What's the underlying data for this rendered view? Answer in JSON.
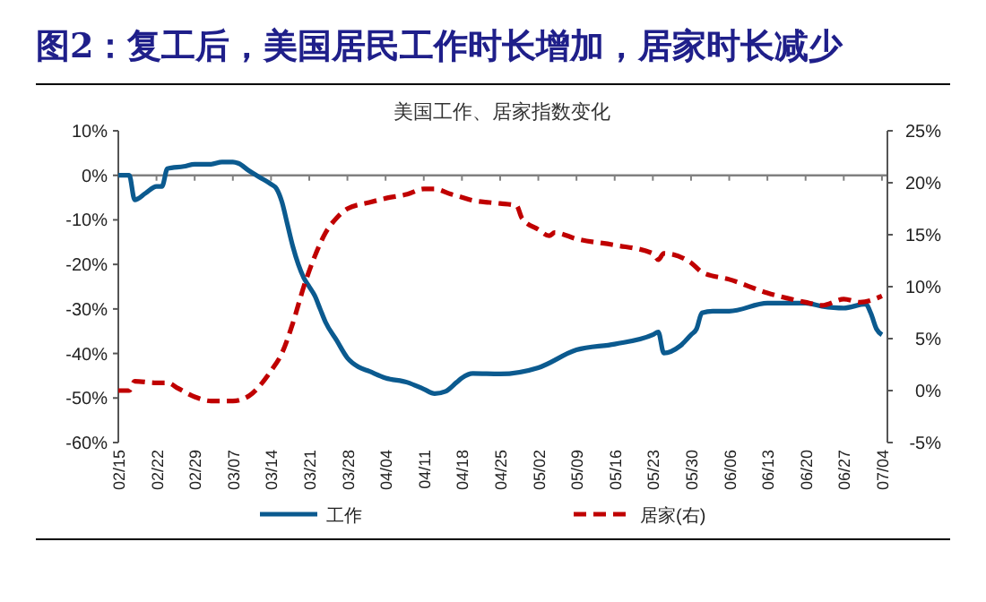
{
  "chart_data": {
    "type": "line",
    "title": "图2：复工后，美国居民工作时长增加，居家时长减少",
    "subtitle": "美国工作、居家指数变化",
    "xlim": [
      "--02-15",
      "--07-05"
    ],
    "xticks": [
      {
        "value": "--02-15",
        "label": "02/15"
      },
      {
        "value": "--02-22",
        "label": "02/22"
      },
      {
        "value": "--02-29",
        "label": "02/29"
      },
      {
        "value": "--03-07",
        "label": "03/07"
      },
      {
        "value": "--03-14",
        "label": "03/14"
      },
      {
        "value": "--03-21",
        "label": "03/21"
      },
      {
        "value": "--03-28",
        "label": "03/28"
      },
      {
        "value": "--04-04",
        "label": "04/04"
      },
      {
        "value": "--04-11",
        "label": "04/11"
      },
      {
        "value": "--04-18",
        "label": "04/18"
      },
      {
        "value": "--04-25",
        "label": "04/25"
      },
      {
        "value": "--05-02",
        "label": "05/02"
      },
      {
        "value": "--05-09",
        "label": "05/09"
      },
      {
        "value": "--05-16",
        "label": "05/16"
      },
      {
        "value": "--05-23",
        "label": "05/23"
      },
      {
        "value": "--05-30",
        "label": "05/30"
      },
      {
        "value": "--06-06",
        "label": "06/06"
      },
      {
        "value": "--06-13",
        "label": "06/13"
      },
      {
        "value": "--06-20",
        "label": "06/20"
      },
      {
        "value": "--06-27",
        "label": "06/27"
      },
      {
        "value": "--07-04",
        "label": "07/04"
      }
    ],
    "ylim": [
      -60,
      10
    ],
    "yticks": [
      {
        "value": -60,
        "label": "-60%"
      },
      {
        "value": -50,
        "label": "-50%"
      },
      {
        "value": -40,
        "label": "-40%"
      },
      {
        "value": -30,
        "label": "-30%"
      },
      {
        "value": -20,
        "label": "-20%"
      },
      {
        "value": -10,
        "label": "-10%"
      },
      {
        "value": 0,
        "label": "0%"
      },
      {
        "value": 10,
        "label": "10%"
      }
    ],
    "y2lim": [
      -5,
      25
    ],
    "y2ticks": [
      {
        "value": -5,
        "label": "-5%"
      },
      {
        "value": 0,
        "label": "0%"
      },
      {
        "value": 5,
        "label": "5%"
      },
      {
        "value": 10,
        "label": "10%"
      },
      {
        "value": 15,
        "label": "15%"
      },
      {
        "value": 20,
        "label": "20%"
      },
      {
        "value": 25,
        "label": "25%"
      }
    ],
    "grid": false,
    "legend": "bottom",
    "marker": "none",
    "ref_lines": [
      {
        "axis": "y",
        "value": 0,
        "color": "#808080"
      }
    ],
    "series": [
      {
        "name": "工作",
        "color": "#0b5a8f",
        "line_style": "solid",
        "x": [
          "--02-15",
          "--02-17",
          "--02-18",
          "--02-20",
          "--02-22",
          "--02-23",
          "--02-24",
          "--02-27",
          "--02-29",
          "--03-03",
          "--03-05",
          "--03-07",
          "--03-08",
          "--03-10",
          "--03-12",
          "--03-14",
          "--03-15",
          "--03-16",
          "--03-17",
          "--03-18",
          "--03-19",
          "--03-20",
          "--03-21",
          "--03-22",
          "--03-23",
          "--03-24",
          "--03-26",
          "--03-28",
          "--03-30",
          "--04-01",
          "--04-04",
          "--04-08",
          "--04-11",
          "--04-13",
          "--04-15",
          "--04-17",
          "--04-18",
          "--04-20",
          "--04-25",
          "--05-02",
          "--05-09",
          "--05-16",
          "--05-23",
          "--05-24",
          "--05-25",
          "--05-28",
          "--05-30",
          "--05-31",
          "--06-01",
          "--06-03",
          "--06-06",
          "--06-13",
          "--06-20",
          "--06-23",
          "--06-27",
          "--07-01",
          "--07-02",
          "--07-03",
          "--07-04"
        ],
        "values": [
          0,
          0,
          -5.5,
          -4,
          -2.5,
          -2.5,
          1.5,
          2,
          2.5,
          2.5,
          3,
          3,
          2.7,
          1,
          -0.5,
          -2,
          -3,
          -6,
          -11,
          -16,
          -20,
          -23,
          -25,
          -27,
          -30,
          -33,
          -37,
          -41,
          -43,
          -44,
          -45.5,
          -46.5,
          -48,
          -49,
          -48.5,
          -46.5,
          -45.5,
          -44.5,
          -44.6,
          -43.2,
          -39.2,
          -37.9,
          -35.8,
          -35.2,
          -39.9,
          -38.3,
          -35.8,
          -34.5,
          -30.9,
          -30.5,
          -30.5,
          -28.7,
          -28.7,
          -29.4,
          -29.8,
          -28.9,
          -31.1,
          -34.5,
          -35.8
        ]
      },
      {
        "name": "居家(右)",
        "color": "#c00000",
        "line_style": "dashed",
        "axis": "y2",
        "x": [
          "--02-15",
          "--02-17",
          "--02-18",
          "--02-22",
          "--02-24",
          "--02-26",
          "--02-29",
          "--03-03",
          "--03-07",
          "--03-10",
          "--03-12",
          "--03-14",
          "--03-16",
          "--03-18",
          "--03-20",
          "--03-22",
          "--03-24",
          "--03-26",
          "--03-28",
          "--04-01",
          "--04-04",
          "--04-08",
          "--04-11",
          "--04-13",
          "--04-16",
          "--04-18",
          "--04-20",
          "--04-23",
          "--04-25",
          "--04-28",
          "--04-29",
          "--05-02",
          "--05-04",
          "--05-05",
          "--05-09",
          "--05-16",
          "--05-23",
          "--05-24",
          "--05-25",
          "--05-30",
          "--06-01",
          "--06-06",
          "--06-13",
          "--06-20",
          "--06-23",
          "--06-27",
          "--06-30",
          "--07-04"
        ],
        "values": [
          0,
          0,
          0.9,
          0.75,
          0.75,
          0.2,
          -0.6,
          -1,
          -1,
          -0.5,
          0.5,
          1.9,
          3.6,
          6.5,
          10,
          12.9,
          15.2,
          16.6,
          17.5,
          18.1,
          18.5,
          18.9,
          19.4,
          19.4,
          18.9,
          18.6,
          18.3,
          18.1,
          18,
          17.8,
          16.6,
          15.5,
          14.9,
          15.2,
          14.6,
          14,
          13.2,
          12.6,
          13.2,
          12.3,
          11.4,
          10.7,
          9.4,
          8.5,
          8.2,
          8.8,
          8.5,
          9.1
        ]
      }
    ]
  }
}
